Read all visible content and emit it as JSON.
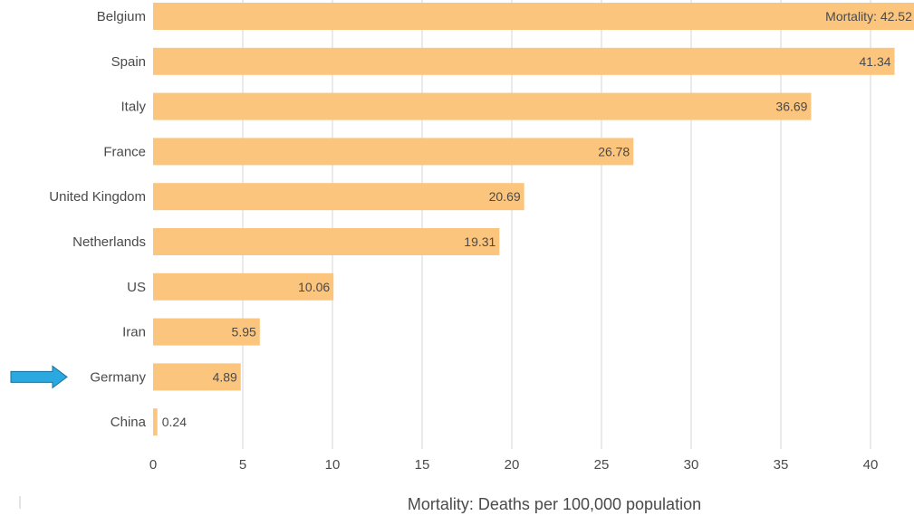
{
  "chart_data": {
    "type": "bar",
    "orientation": "horizontal",
    "categories": [
      "Belgium",
      "Spain",
      "Italy",
      "France",
      "United Kingdom",
      "Netherlands",
      "US",
      "Iran",
      "Germany",
      "China"
    ],
    "values": [
      42.52,
      41.34,
      36.69,
      26.78,
      20.69,
      19.31,
      10.06,
      5.95,
      4.89,
      0.24
    ],
    "value_labels": [
      "Mortality: 42.52",
      "41.34",
      "36.69",
      "26.78",
      "20.69",
      "19.31",
      "10.06",
      "5.95",
      "4.89",
      "0.24"
    ],
    "xlabel": "Mortality: Deaths per 100,000 population",
    "ylabel": "",
    "title": "",
    "xlim": [
      0,
      42.52
    ],
    "x_ticks": [
      0,
      5,
      10,
      15,
      20,
      25,
      30,
      35,
      40
    ],
    "x_tick_labels": [
      "0",
      "5",
      "10",
      "15",
      "20",
      "25",
      "30",
      "35",
      "40"
    ],
    "grid": true,
    "legend": "none",
    "bar_color": "#fbc57d",
    "highlighted_category": "Germany",
    "annotation": {
      "type": "arrow",
      "target": "Germany",
      "color": "#2aa8e0",
      "icon": "arrow-right-icon"
    }
  }
}
